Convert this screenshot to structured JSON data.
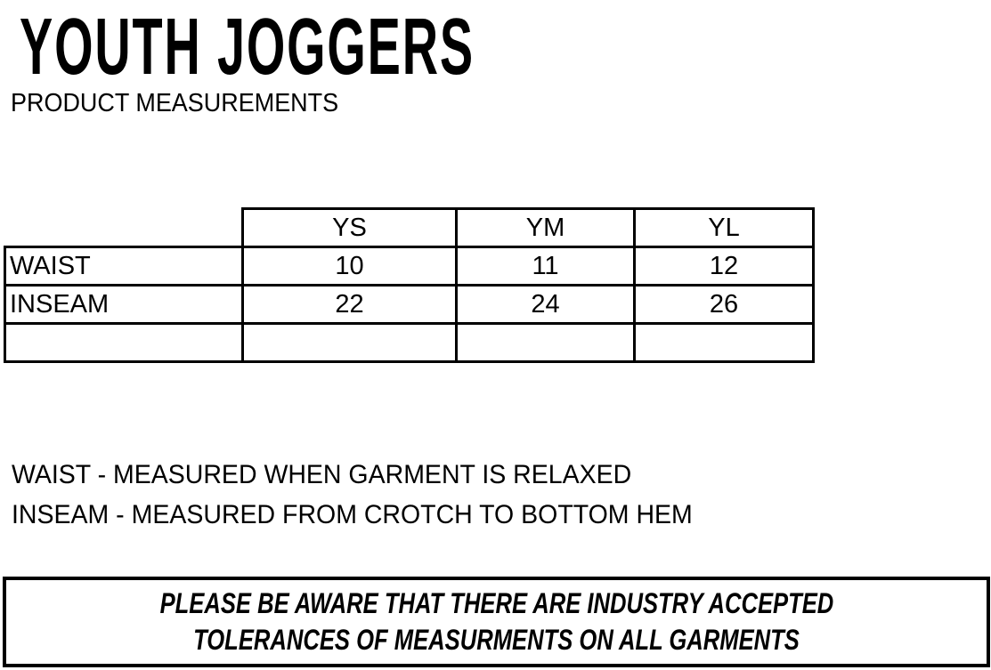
{
  "title": "YOUTH JOGGERS",
  "subtitle": "PRODUCT MEASUREMENTS",
  "table": {
    "headers": [
      "",
      "YS",
      "YM",
      "YL"
    ],
    "rows": [
      {
        "label": "WAIST",
        "values": [
          "10",
          "11",
          "12"
        ]
      },
      {
        "label": "INSEAM",
        "values": [
          "22",
          "24",
          "26"
        ]
      },
      {
        "label": "",
        "values": [
          "",
          "",
          ""
        ]
      }
    ]
  },
  "notes": [
    "WAIST - MEASURED WHEN GARMENT IS RELAXED",
    "INSEAM - MEASURED FROM CROTCH TO BOTTOM HEM"
  ],
  "disclaimer": [
    "PLEASE BE AWARE THAT THERE ARE INDUSTRY ACCEPTED",
    "TOLERANCES OF MEASURMENTS ON ALL GARMENTS"
  ]
}
